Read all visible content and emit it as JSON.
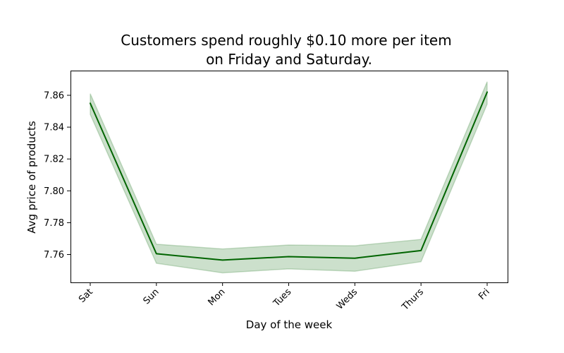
{
  "chart_data": {
    "type": "line",
    "title_line1": "Customers spend roughly $0.10 more per item",
    "title_line2": "on Friday and Saturday.",
    "xlabel": "Day of the week",
    "ylabel": "Avg price of products",
    "categories": [
      "Sat",
      "Sun",
      "Mon",
      "Tues",
      "Weds",
      "Thurs",
      "Fri"
    ],
    "series": [
      {
        "values": [
          7.855,
          7.7605,
          7.7565,
          7.7587,
          7.7577,
          7.7625,
          7.862
        ],
        "ci_upper": [
          7.861,
          7.7665,
          7.7635,
          7.766,
          7.7655,
          7.7695,
          7.8685
        ],
        "ci_lower": [
          7.848,
          7.7545,
          7.7485,
          7.751,
          7.7495,
          7.7555,
          7.8545
        ],
        "color": "#006400",
        "band_color": "#006400",
        "band_opacity": 0.2
      }
    ],
    "ylim": [
      7.7425,
      7.8755
    ],
    "yticks": [
      7.76,
      7.78,
      7.8,
      7.82,
      7.84,
      7.86
    ],
    "ytick_labels": [
      "7.76",
      "7.78",
      "7.80",
      "7.82",
      "7.84",
      "7.86"
    ],
    "grid": false,
    "legend": "none"
  }
}
